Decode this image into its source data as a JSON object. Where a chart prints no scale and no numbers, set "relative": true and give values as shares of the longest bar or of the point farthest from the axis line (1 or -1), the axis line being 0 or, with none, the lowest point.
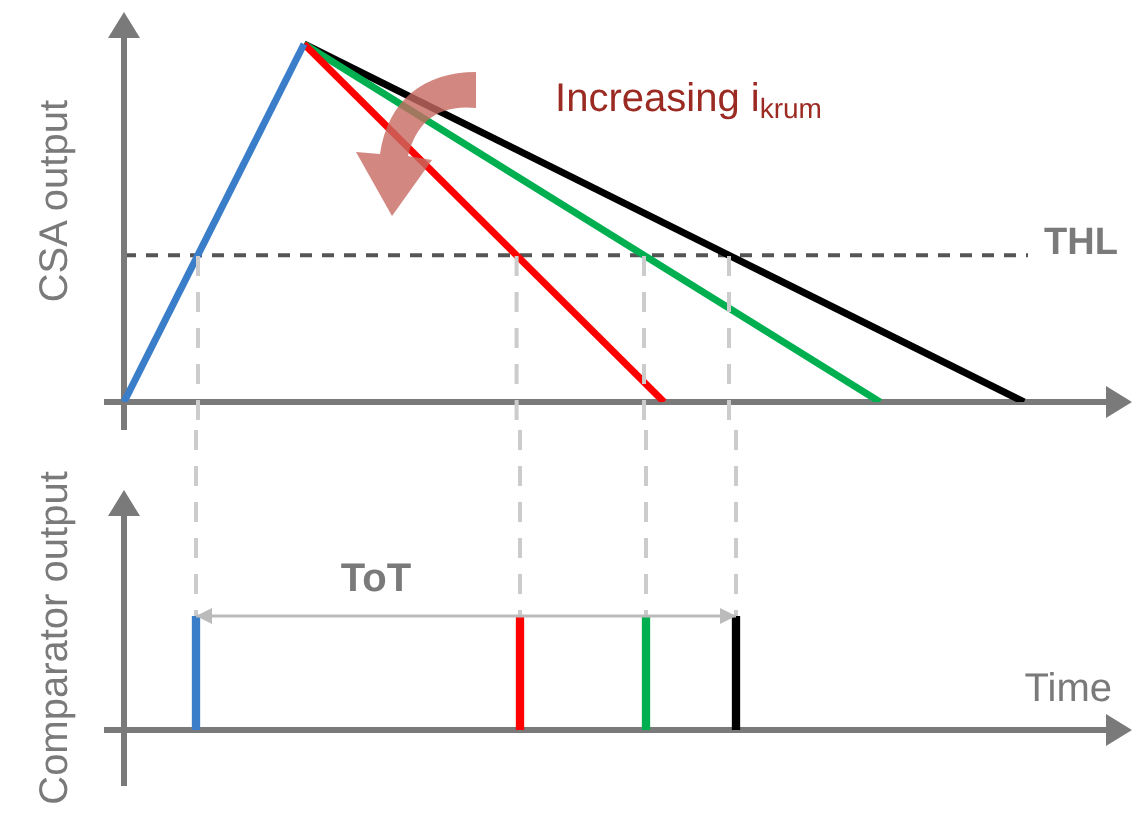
{
  "chart_data": [
    {
      "type": "line",
      "relative": true,
      "ylabel": "CSA output",
      "marker": "none",
      "line_style": "solid",
      "categories": [
        null,
        null,
        null,
        null,
        null,
        null,
        null,
        null,
        null,
        null,
        null,
        null,
        null,
        null,
        null,
        null,
        null,
        null,
        null,
        null,
        null,
        null,
        null,
        null,
        null,
        null,
        null,
        null,
        null,
        null,
        null,
        null,
        null,
        null,
        null,
        null,
        null,
        null,
        null,
        null,
        null,
        null,
        null,
        null,
        null,
        null,
        null,
        null,
        null,
        null,
        null,
        null,
        null,
        null,
        null,
        null,
        null
      ],
      "series": [
        {
          "color": "#3a7dc9",
          "values": [
            0,
            null,
            null,
            null,
            null,
            null,
            null,
            null,
            null,
            null,
            1,
            null,
            null,
            null,
            null,
            null,
            null,
            null,
            null,
            null,
            null,
            null,
            null,
            null,
            null,
            null,
            null,
            null,
            null,
            null,
            null,
            null,
            null,
            null,
            null,
            null,
            null,
            null,
            null,
            null,
            null,
            null,
            null,
            null,
            null,
            null,
            null,
            null,
            null,
            null,
            null,
            null,
            null,
            null,
            null,
            null,
            null
          ]
        },
        {
          "color": "#ff0000",
          "values": [
            null,
            null,
            null,
            null,
            null,
            null,
            null,
            null,
            null,
            null,
            1,
            null,
            null,
            null,
            null,
            null,
            null,
            null,
            null,
            null,
            null,
            null,
            null,
            null,
            null,
            null,
            null,
            null,
            null,
            null,
            0,
            null,
            null,
            null,
            null,
            null,
            null,
            null,
            null,
            null,
            null,
            null,
            null,
            null,
            null,
            null,
            null,
            null,
            null,
            null,
            null,
            null,
            null,
            null,
            null,
            null,
            null
          ]
        },
        {
          "color": "#00b050",
          "values": [
            null,
            null,
            null,
            null,
            null,
            null,
            null,
            null,
            null,
            null,
            1,
            null,
            null,
            null,
            null,
            null,
            null,
            null,
            null,
            null,
            null,
            null,
            null,
            null,
            null,
            null,
            null,
            null,
            null,
            null,
            null,
            null,
            null,
            null,
            null,
            null,
            null,
            null,
            null,
            null,
            null,
            null,
            0,
            null,
            null,
            null,
            null,
            null,
            null,
            null,
            null,
            null,
            null,
            null,
            null,
            null,
            null
          ]
        },
        {
          "color": "#000000",
          "values": [
            null,
            null,
            null,
            null,
            null,
            null,
            null,
            null,
            null,
            null,
            1,
            null,
            null,
            null,
            null,
            null,
            null,
            null,
            null,
            null,
            null,
            null,
            null,
            null,
            null,
            null,
            null,
            null,
            null,
            null,
            null,
            null,
            null,
            null,
            null,
            null,
            null,
            null,
            null,
            null,
            null,
            null,
            null,
            null,
            null,
            null,
            null,
            null,
            null,
            null,
            0,
            null,
            null,
            null,
            null,
            null,
            null
          ]
        }
      ],
      "ref_lines": [
        {
          "axis": "y",
          "value": 0.41,
          "label": "THL",
          "color": "#555555",
          "line_style": "dashed"
        }
      ],
      "annotations": [
        "Increasing i$_{krum}$"
      ]
    },
    {
      "type": "bar",
      "relative": true,
      "stacked": true,
      "ylabel": "Comparator output",
      "xlabel": "Time",
      "categories": [
        null,
        null,
        null,
        null,
        null,
        null,
        null,
        null,
        null,
        null,
        null,
        null,
        null,
        null,
        null,
        null,
        null,
        null,
        null,
        null,
        null,
        null,
        null,
        null,
        null,
        null,
        null,
        null,
        null,
        null,
        null,
        null,
        null,
        null,
        null,
        null,
        null,
        null,
        null,
        null,
        null,
        null,
        null,
        null,
        null,
        null,
        null,
        null,
        null,
        null,
        null,
        null,
        null,
        null,
        null,
        null,
        null
      ],
      "series": [
        {
          "color": "#3a7dc9",
          "values": [
            null,
            null,
            null,
            null,
            1,
            null,
            null,
            null,
            null,
            null,
            null,
            null,
            null,
            null,
            null,
            null,
            null,
            null,
            null,
            null,
            null,
            null,
            null,
            null,
            null,
            null,
            null,
            null,
            null,
            null,
            null,
            null,
            null,
            null,
            null,
            null,
            null,
            null,
            null,
            null,
            null,
            null,
            null,
            null,
            null,
            null,
            null,
            null,
            null,
            null,
            null,
            null,
            null,
            null,
            null,
            null,
            null
          ]
        },
        {
          "color": "#ff0000",
          "values": [
            null,
            null,
            null,
            null,
            null,
            null,
            null,
            null,
            null,
            null,
            null,
            null,
            null,
            null,
            null,
            null,
            null,
            null,
            null,
            null,
            null,
            null,
            1,
            null,
            null,
            null,
            null,
            null,
            null,
            null,
            null,
            null,
            null,
            null,
            null,
            null,
            null,
            null,
            null,
            null,
            null,
            null,
            null,
            null,
            null,
            null,
            null,
            null,
            null,
            null,
            null,
            null,
            null,
            null,
            null,
            null,
            null
          ]
        },
        {
          "color": "#00b050",
          "values": [
            null,
            null,
            null,
            null,
            null,
            null,
            null,
            null,
            null,
            null,
            null,
            null,
            null,
            null,
            null,
            null,
            null,
            null,
            null,
            null,
            null,
            null,
            null,
            null,
            null,
            null,
            null,
            null,
            null,
            1,
            null,
            null,
            null,
            null,
            null,
            null,
            null,
            null,
            null,
            null,
            null,
            null,
            null,
            null,
            null,
            null,
            null,
            null,
            null,
            null,
            null,
            null,
            null,
            null,
            null,
            null,
            null
          ]
        },
        {
          "color": "#000000",
          "values": [
            null,
            null,
            null,
            null,
            null,
            null,
            null,
            null,
            null,
            null,
            null,
            null,
            null,
            null,
            null,
            null,
            null,
            null,
            null,
            null,
            null,
            null,
            null,
            null,
            null,
            null,
            null,
            null,
            null,
            null,
            null,
            null,
            null,
            null,
            1,
            null,
            null,
            null,
            null,
            null,
            null,
            null,
            null,
            null,
            null,
            null,
            null,
            null,
            null,
            null,
            null,
            null,
            null,
            null,
            null,
            null,
            null
          ]
        }
      ],
      "annotations": [
        "ToT"
      ]
    }
  ]
}
